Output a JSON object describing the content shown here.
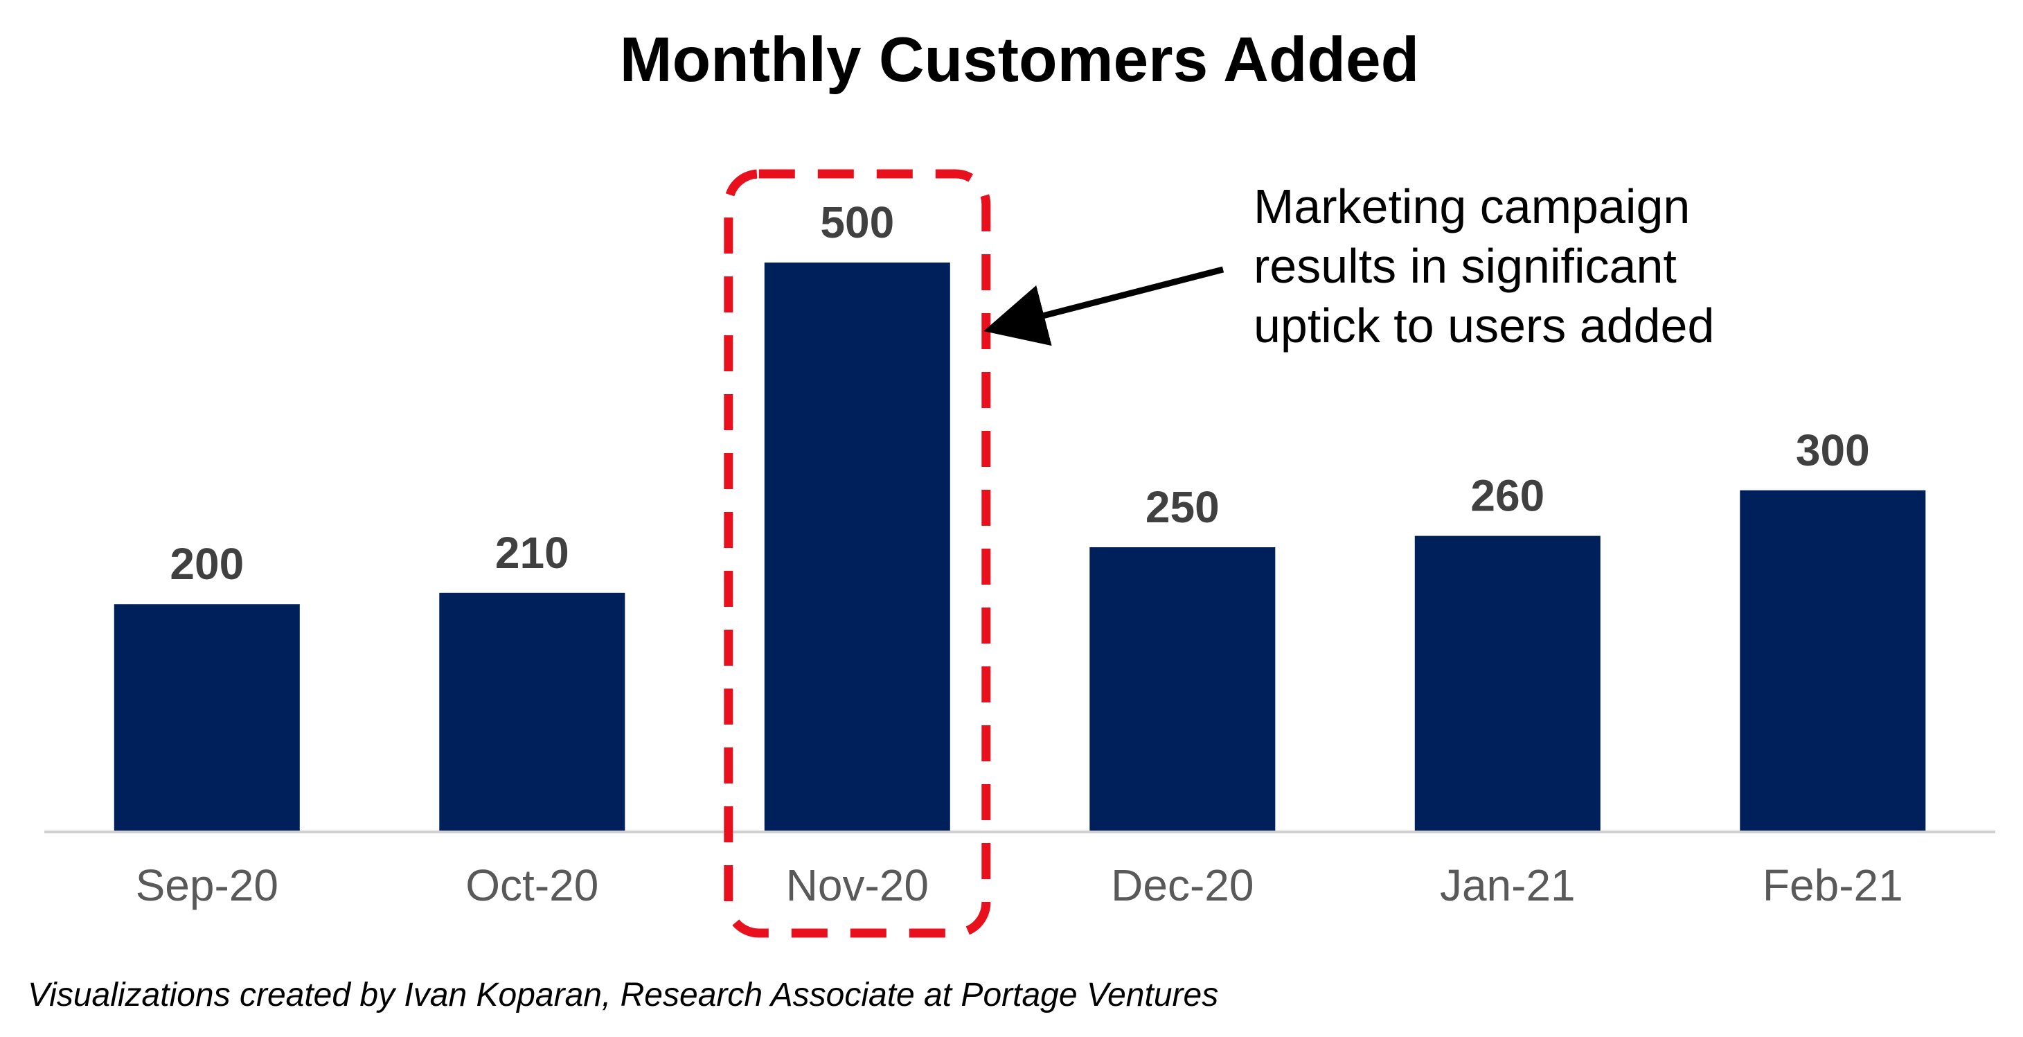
{
  "chart_data": {
    "type": "bar",
    "title": "Monthly Customers Added",
    "categories": [
      "Sep-20",
      "Oct-20",
      "Nov-20",
      "Dec-20",
      "Jan-21",
      "Feb-21"
    ],
    "values": [
      200,
      210,
      500,
      250,
      260,
      300
    ],
    "value_labels": [
      "200",
      "210",
      "500",
      "250",
      "260",
      "300"
    ],
    "xlabel": "",
    "ylabel": "",
    "ylim": [
      0,
      500
    ],
    "grid": false,
    "legend": "none",
    "highlight": {
      "category": "Nov-20",
      "style": "dashed-box"
    },
    "annotation": {
      "lines": [
        "Marketing campaign",
        "results in significant",
        "uptick to users added"
      ],
      "target": "Nov-20"
    }
  },
  "footnote": "Visualizations created by Ivan Koparan, Research Associate at Portage Ventures",
  "colors": {
    "bar": "#00205b",
    "highlight": "#e8101c",
    "axis": "#d0d0d0",
    "value_label": "#404040",
    "tick_label": "#595959",
    "arrow": "#000000"
  }
}
